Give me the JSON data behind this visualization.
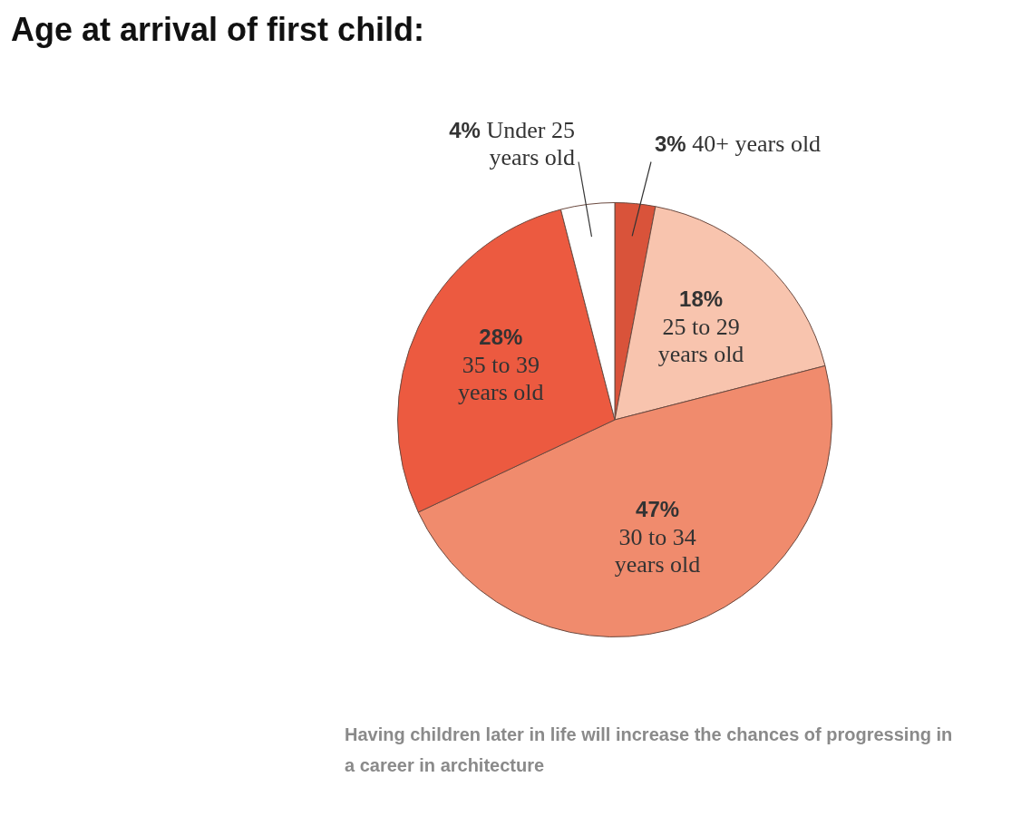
{
  "chart_data": {
    "type": "pie",
    "title": "Age at arrival of first child:",
    "categories": [
      "40+ years old",
      "25 to 29 years old",
      "30 to 34 years old",
      "35 to 39 years old",
      "Under 25 years old"
    ],
    "values": [
      3,
      18,
      47,
      28,
      4
    ],
    "colors": [
      "#d9533a",
      "#f8c4ae",
      "#f08b6d",
      "#ec5a40",
      "#ffffff"
    ],
    "value_labels": [
      "3%",
      "18%",
      "47%",
      "28%",
      "4%"
    ],
    "legend": false,
    "annotations": [
      "Having children later in life will increase the chances of progressing in a career in architecture"
    ]
  }
}
